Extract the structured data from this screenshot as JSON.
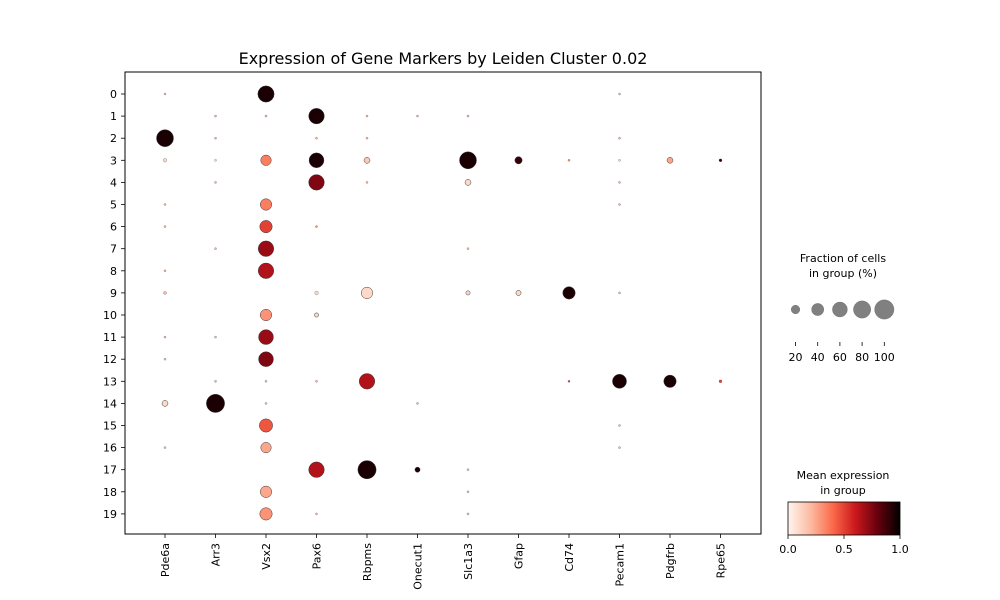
{
  "chart_data": {
    "type": "dotplot",
    "title": "Expression of Gene Markers by Leiden Cluster 0.02",
    "genes": [
      "Pde6a",
      "Arr3",
      "Vsx2",
      "Pax6",
      "Rbpms",
      "Onecut1",
      "Slc1a3",
      "Gfap",
      "Cd74",
      "Pecam1",
      "Pdgfrb",
      "Rpe65"
    ],
    "clusters": [
      "0",
      "1",
      "2",
      "3",
      "4",
      "5",
      "6",
      "7",
      "8",
      "9",
      "10",
      "11",
      "12",
      "13",
      "14",
      "15",
      "16",
      "17",
      "18",
      "19"
    ],
    "fraction_pct": [
      [
        1,
        0,
        60,
        0,
        0,
        0,
        0,
        0,
        0,
        1,
        0,
        0
      ],
      [
        0,
        1,
        1,
        55,
        1,
        1,
        1,
        0,
        0,
        0,
        0,
        0
      ],
      [
        65,
        1,
        0,
        1,
        1,
        0,
        0,
        0,
        0,
        1,
        0,
        0
      ],
      [
        3,
        1,
        25,
        50,
        8,
        0,
        65,
        12,
        1,
        1,
        8,
        2
      ],
      [
        0,
        1,
        0,
        55,
        1,
        0,
        8,
        0,
        0,
        1,
        0,
        0
      ],
      [
        1,
        0,
        30,
        0,
        0,
        0,
        0,
        0,
        0,
        1,
        0,
        0
      ],
      [
        1,
        0,
        35,
        1,
        0,
        0,
        0,
        0,
        0,
        0,
        0,
        0
      ],
      [
        0,
        1,
        55,
        0,
        0,
        0,
        1,
        0,
        0,
        0,
        0,
        0
      ],
      [
        1,
        0,
        55,
        0,
        0,
        0,
        0,
        0,
        0,
        0,
        0,
        0
      ],
      [
        2,
        0,
        0,
        3,
        30,
        0,
        4,
        6,
        35,
        1,
        0,
        0
      ],
      [
        0,
        0,
        30,
        4,
        0,
        0,
        0,
        0,
        0,
        0,
        0,
        0
      ],
      [
        1,
        1,
        50,
        0,
        0,
        0,
        0,
        0,
        0,
        0,
        0,
        0
      ],
      [
        1,
        0,
        50,
        0,
        0,
        0,
        0,
        0,
        0,
        0,
        0,
        0
      ],
      [
        0,
        1,
        1,
        1,
        55,
        0,
        0,
        0,
        1,
        45,
        35,
        2
      ],
      [
        8,
        75,
        1,
        0,
        0,
        1,
        0,
        0,
        0,
        0,
        0,
        0
      ],
      [
        0,
        0,
        40,
        0,
        0,
        0,
        0,
        0,
        0,
        1,
        0,
        0
      ],
      [
        1,
        0,
        25,
        0,
        0,
        0,
        0,
        0,
        0,
        1,
        0,
        0
      ],
      [
        0,
        0,
        0,
        55,
        75,
        6,
        1,
        0,
        0,
        0,
        0,
        0
      ],
      [
        0,
        0,
        30,
        0,
        0,
        0,
        1,
        0,
        0,
        0,
        0,
        0
      ],
      [
        0,
        0,
        35,
        1,
        0,
        0,
        1,
        0,
        0,
        0,
        0,
        0
      ]
    ],
    "mean_expression": [
      [
        0.2,
        0,
        0.95,
        0,
        0,
        0,
        0,
        0,
        0,
        0.2,
        0,
        0
      ],
      [
        0,
        0.2,
        0.2,
        0.95,
        0.2,
        0.2,
        0.2,
        0,
        0,
        0,
        0,
        0
      ],
      [
        0.95,
        0.2,
        0,
        0.2,
        0.2,
        0,
        0,
        0,
        0,
        0.2,
        0,
        0
      ],
      [
        0.1,
        0.1,
        0.35,
        0.95,
        0.15,
        0,
        0.95,
        0.9,
        0.3,
        0.1,
        0.25,
        0.9
      ],
      [
        0,
        0.2,
        0,
        0.75,
        0.2,
        0,
        0.1,
        0,
        0,
        0.2,
        0,
        0
      ],
      [
        0.2,
        0,
        0.35,
        0,
        0,
        0,
        0,
        0,
        0,
        0.2,
        0,
        0
      ],
      [
        0.2,
        0,
        0.5,
        0.3,
        0,
        0,
        0,
        0,
        0,
        0,
        0,
        0
      ],
      [
        0,
        0.2,
        0.7,
        0,
        0,
        0,
        0.2,
        0,
        0,
        0,
        0,
        0
      ],
      [
        0.2,
        0,
        0.65,
        0,
        0,
        0,
        0,
        0,
        0,
        0,
        0,
        0
      ],
      [
        0.2,
        0,
        0,
        0.1,
        0.1,
        0,
        0.1,
        0.1,
        0.95,
        0.2,
        0,
        0
      ],
      [
        0,
        0,
        0.3,
        0.1,
        0,
        0,
        0,
        0,
        0,
        0,
        0,
        0
      ],
      [
        0.2,
        0.2,
        0.7,
        0,
        0,
        0,
        0,
        0,
        0,
        0,
        0,
        0
      ],
      [
        0.2,
        0,
        0.75,
        0,
        0,
        0,
        0,
        0,
        0,
        0,
        0,
        0
      ],
      [
        0,
        0.2,
        0.2,
        0.2,
        0.65,
        0,
        0,
        0,
        0.5,
        0.95,
        0.95,
        0.5
      ],
      [
        0.1,
        0.95,
        0.2,
        0,
        0,
        0.2,
        0,
        0,
        0,
        0,
        0,
        0
      ],
      [
        0,
        0,
        0.45,
        0,
        0,
        0,
        0,
        0,
        0,
        0.2,
        0,
        0
      ],
      [
        0.2,
        0,
        0.25,
        0,
        0,
        0,
        0,
        0,
        0,
        0.2,
        0,
        0
      ],
      [
        0,
        0,
        0,
        0.65,
        0.95,
        0.95,
        0.2,
        0,
        0,
        0,
        0,
        0
      ],
      [
        0,
        0,
        0.25,
        0,
        0,
        0,
        0.2,
        0,
        0,
        0,
        0,
        0
      ],
      [
        0,
        0,
        0.3,
        0.2,
        0,
        0,
        0.2,
        0,
        0,
        0,
        0,
        0
      ]
    ],
    "size_legend": {
      "title_line1": "Fraction of cells",
      "title_line2": "in group (%)",
      "ticks": [
        20,
        40,
        60,
        80,
        100
      ]
    },
    "color_legend": {
      "title_line1": "Mean expression",
      "title_line2": "in group",
      "ticks": [
        "0.0",
        "0.5",
        "1.0"
      ],
      "range": [
        0,
        1
      ],
      "colormap": "Reds",
      "colors": [
        "#fff5f0",
        "#fcbba1",
        "#fb6a4a",
        "#cb181d",
        "#67000d",
        "#000000"
      ]
    }
  }
}
